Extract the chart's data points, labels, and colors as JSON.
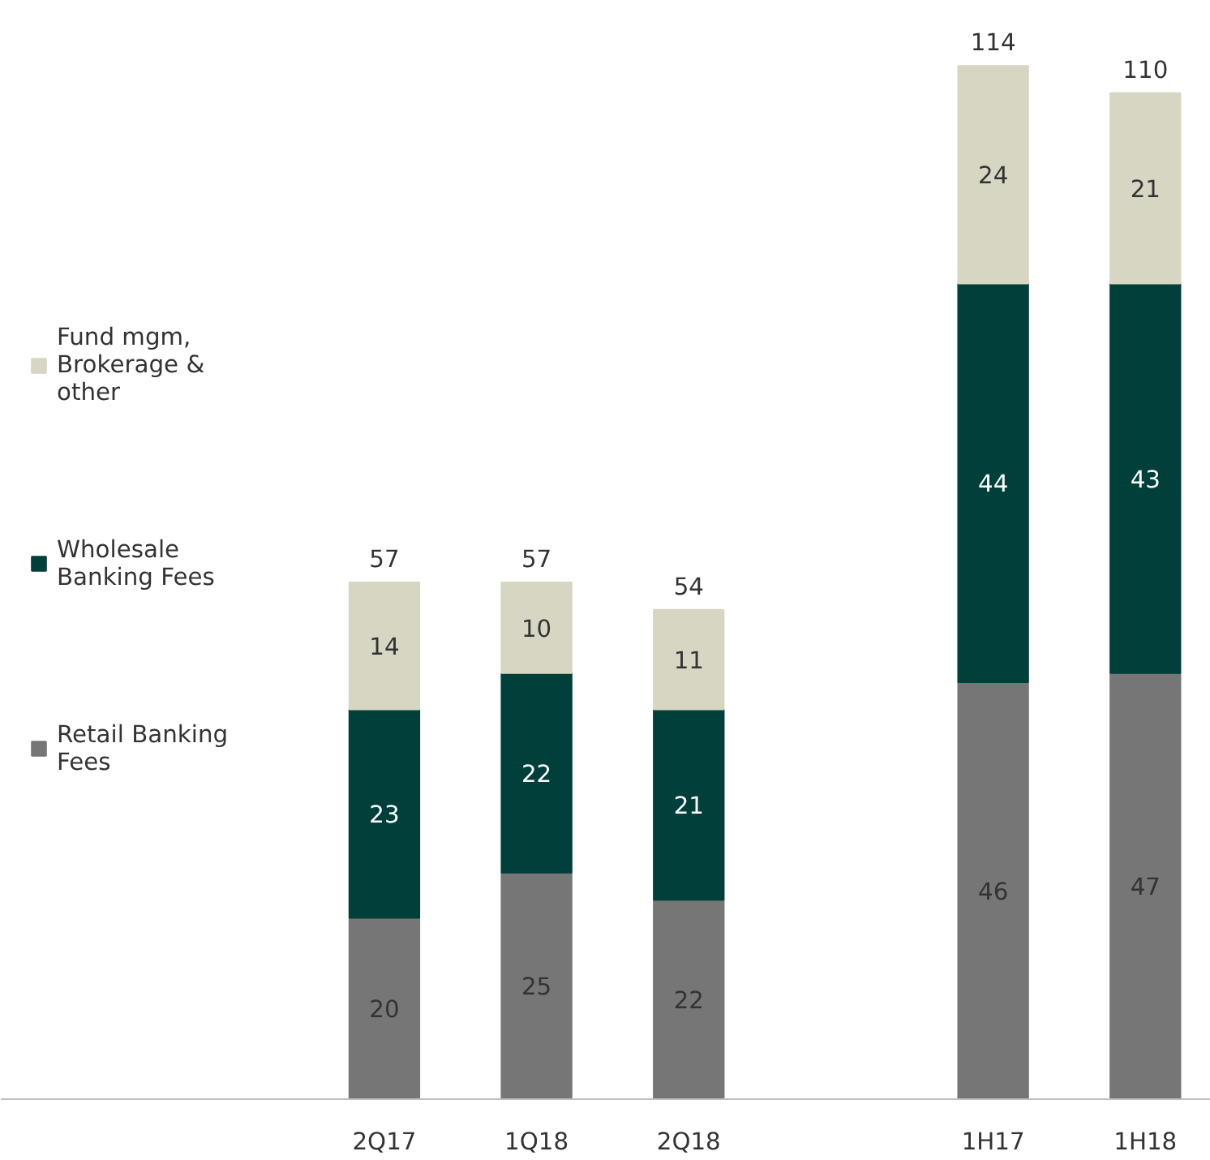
{
  "chart_data": {
    "type": "bar",
    "stacked": true,
    "categories": [
      "2Q17",
      "1Q18",
      "2Q18",
      null,
      "1H17",
      "1H18"
    ],
    "series": [
      {
        "name": "Retail Banking Fees",
        "color": "#767676",
        "values": [
          20,
          25,
          22,
          null,
          46,
          47
        ]
      },
      {
        "name": "Wholesale Banking Fees",
        "color": "#003f3a",
        "values": [
          23,
          22,
          21,
          null,
          44,
          43
        ]
      },
      {
        "name": "Fund mgm, Brokerage & other",
        "color": "#d6d6c3",
        "values": [
          14,
          10,
          11,
          null,
          24,
          21
        ]
      }
    ],
    "totals": [
      "57",
      "57",
      "54",
      null,
      "114",
      "110"
    ],
    "data_labels": true,
    "legend": "left",
    "grid": false
  }
}
